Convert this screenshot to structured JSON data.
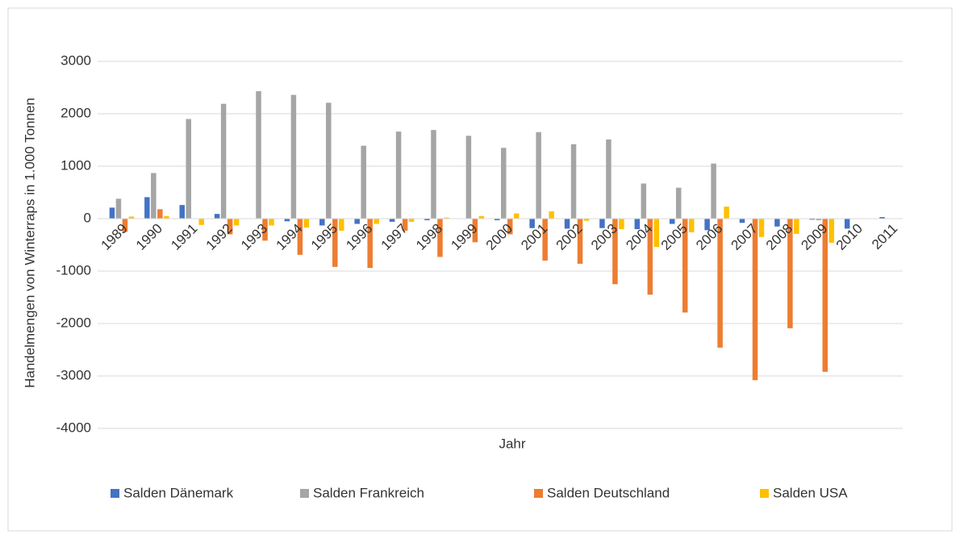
{
  "chart_data": {
    "type": "bar",
    "y_label": "Handelmengen von Winterraps in 1.000 Tonnen",
    "x_label": "Jahr",
    "categories": [
      "1989",
      "1990",
      "1991",
      "1992",
      "1993",
      "1994",
      "1995",
      "1996",
      "1997",
      "1998",
      "1999",
      "2000",
      "2001",
      "2002",
      "2003",
      "2004",
      "2005",
      "2006",
      "2007",
      "2008",
      "2009",
      "2010",
      "2011"
    ],
    "series": [
      {
        "name": "Salden Dänemark",
        "color": "#4472c4",
        "values": [
          210,
          410,
          260,
          90,
          0,
          -50,
          -130,
          -100,
          -60,
          -30,
          0,
          -30,
          -180,
          -190,
          -180,
          -200,
          -100,
          -220,
          -80,
          -150,
          -20,
          -190,
          30
        ]
      },
      {
        "name": "Salden Frankreich",
        "color": "#a5a5a5",
        "values": [
          380,
          870,
          1900,
          2190,
          2430,
          2360,
          2210,
          1390,
          1660,
          1690,
          1580,
          1350,
          1650,
          1420,
          1510,
          670,
          590,
          1050,
          0,
          0,
          -30,
          0,
          0
        ]
      },
      {
        "name": "Salden Deutschland",
        "color": "#ed7d31",
        "values": [
          -250,
          180,
          0,
          -300,
          -420,
          -690,
          -920,
          -940,
          -230,
          -730,
          -450,
          -300,
          -800,
          -860,
          -1250,
          -1450,
          -1790,
          -2460,
          -3080,
          -2090,
          -2920,
          0,
          0
        ]
      },
      {
        "name": "Salden USA",
        "color": "#ffc000",
        "values": [
          40,
          50,
          -120,
          -130,
          -130,
          -170,
          -230,
          -100,
          -60,
          20,
          50,
          100,
          140,
          -40,
          -200,
          -540,
          -260,
          230,
          -350,
          -290,
          -460,
          0,
          0
        ]
      }
    ],
    "ylim": [
      -4000,
      3000
    ],
    "yticks": [
      -4000,
      -3000,
      -2000,
      -1000,
      0,
      1000,
      2000,
      3000
    ],
    "grid": true,
    "legend": "bottom"
  }
}
